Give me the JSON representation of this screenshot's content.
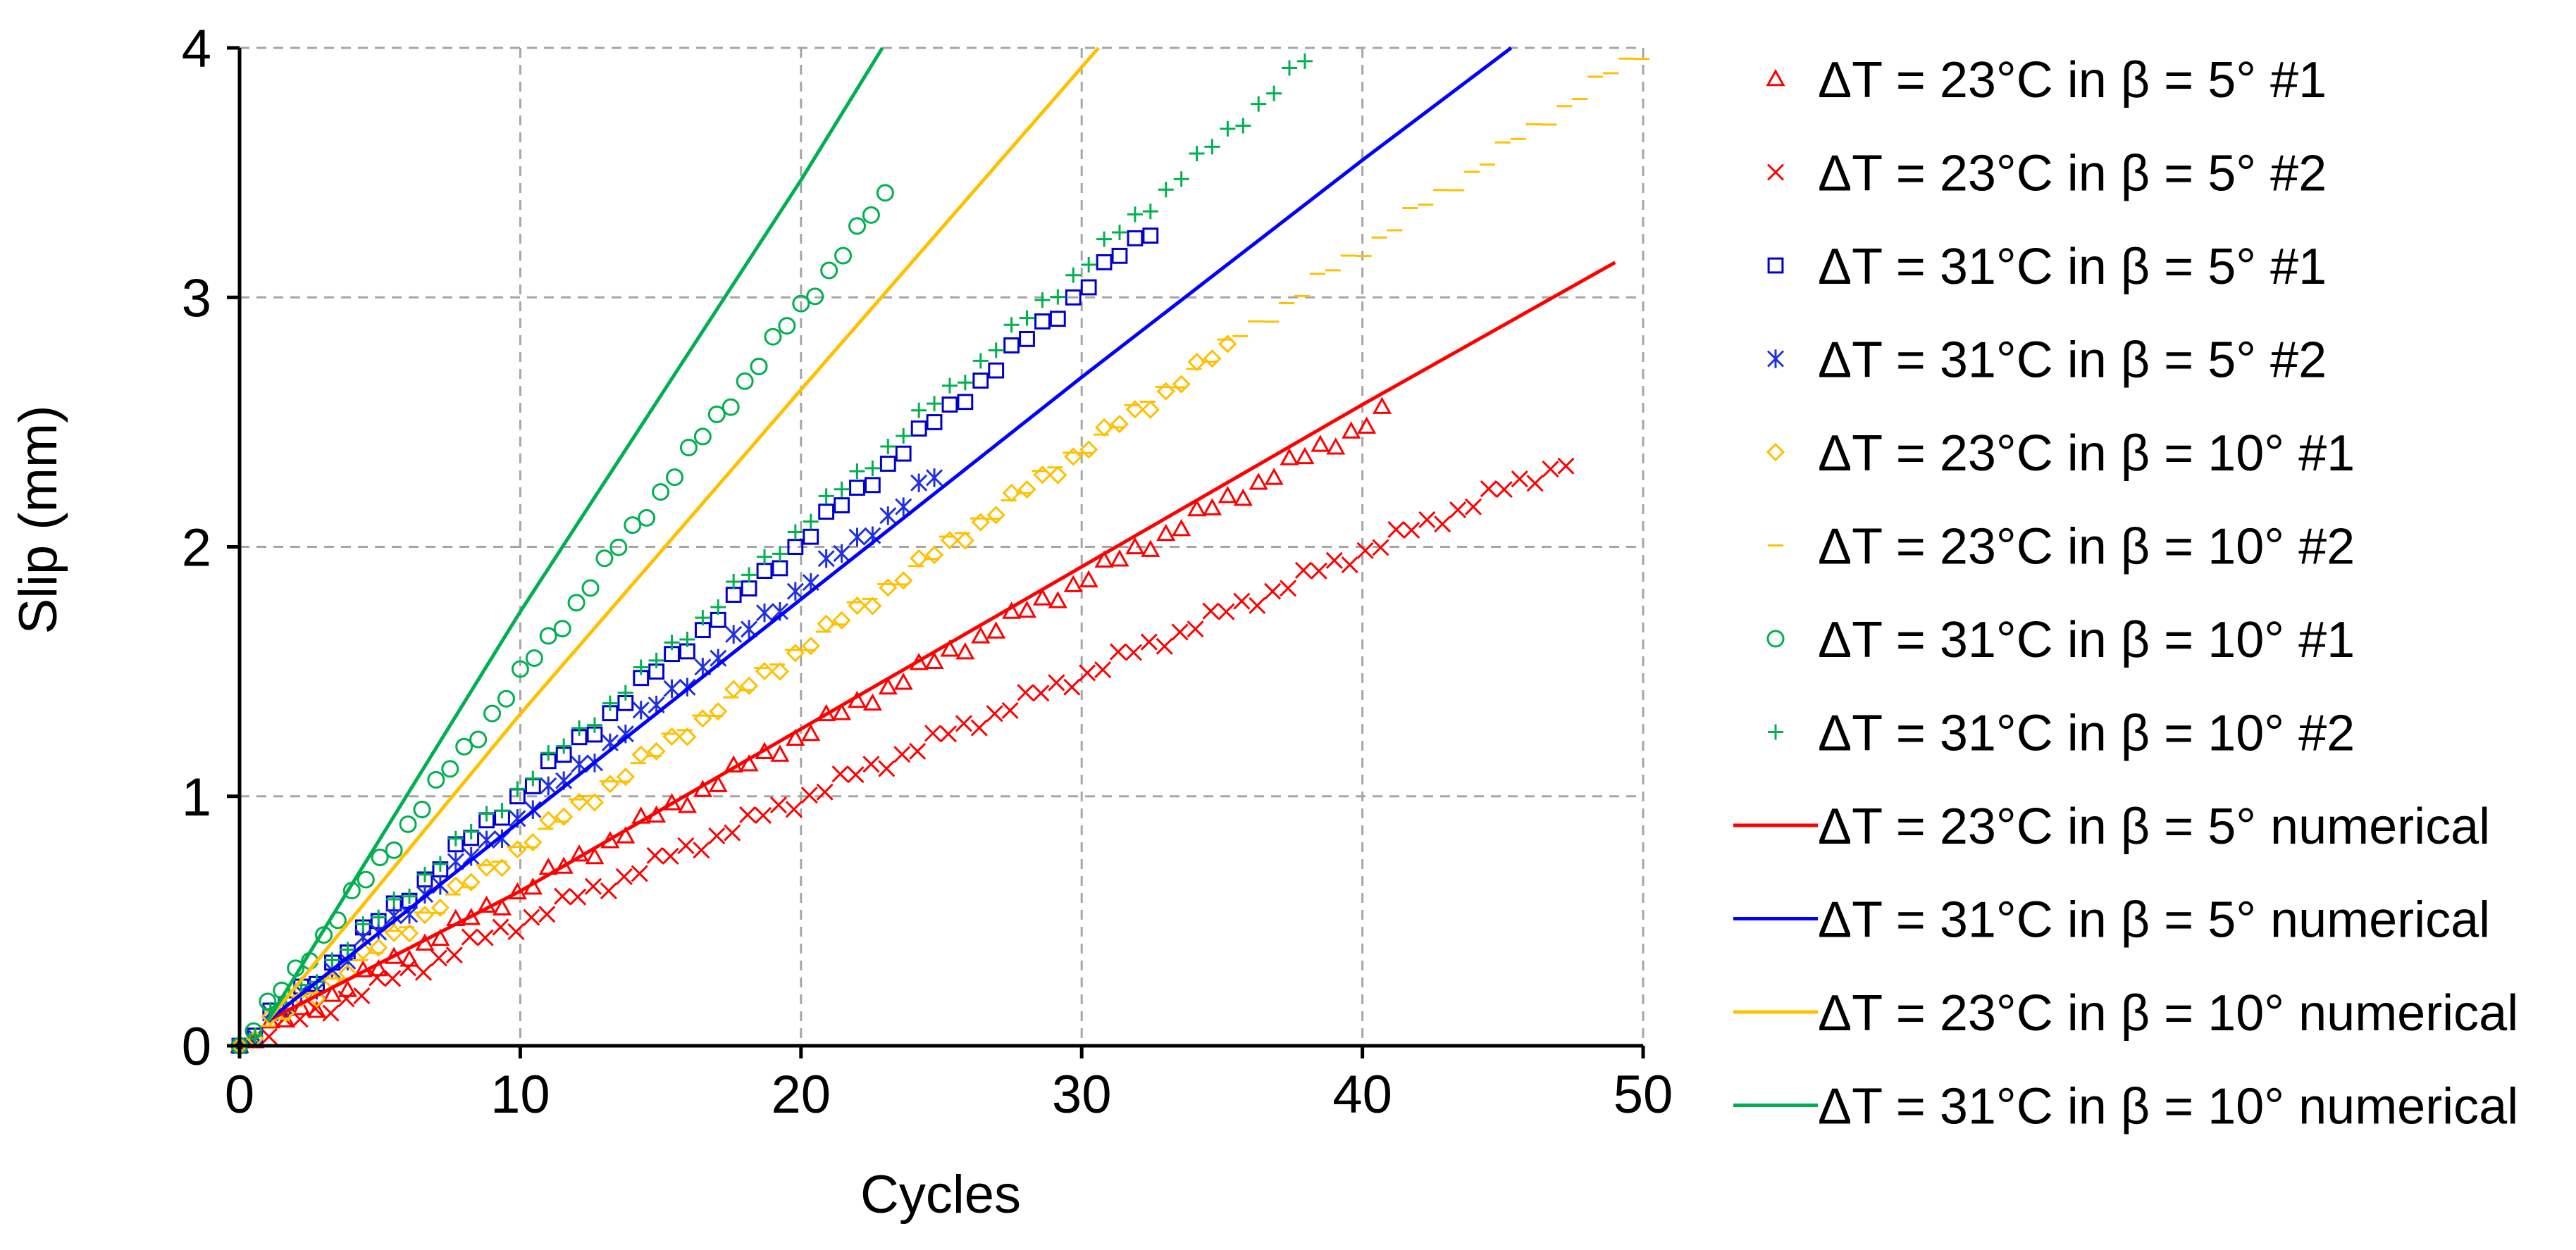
{
  "chart_data": {
    "type": "scatter",
    "xlabel": "Cycles",
    "ylabel": "Slip (mm)",
    "xlim": [
      0,
      50
    ],
    "ylim": [
      0,
      4
    ],
    "xticks": [
      "0",
      "10",
      "20",
      "30",
      "40",
      "50"
    ],
    "yticks": [
      "0",
      "1",
      "2",
      "3",
      "4"
    ],
    "xtick_values": [
      0,
      10,
      20,
      30,
      40,
      50
    ],
    "ytick_values": [
      0,
      1,
      2,
      3,
      4
    ],
    "grid": true,
    "legend_position": "right",
    "series": [
      {
        "name": "ΔT = 23°C in β = 5° #1",
        "kind": "markers",
        "marker": "triangle",
        "color": "#ff0000",
        "x_start": 0,
        "x_end": 41,
        "slope": 0.0622,
        "step": 0.55,
        "end_y": 2.55
      },
      {
        "name": "ΔT = 23°C in β = 5° #2",
        "kind": "markers",
        "marker": "cross",
        "color": "#ff0000",
        "x_start": 0.5,
        "x_end": 47.5,
        "slope": 0.0495,
        "step": 0.55,
        "end_y": 2.35
      },
      {
        "name": "ΔT = 31°C in β = 5° #1",
        "kind": "markers",
        "marker": "square",
        "color": "#0000cc",
        "x_start": 0,
        "x_end": 32.5,
        "slope": 0.101,
        "step": 0.55,
        "end_y": 3.3
      },
      {
        "name": "ΔT = 31°C in β = 5° #2",
        "kind": "markers",
        "marker": "asterisk",
        "color": "#2030dd",
        "x_start": 0,
        "x_end": 25,
        "slope": 0.092,
        "step": 0.55,
        "end_y": 2.3
      },
      {
        "name": "ΔT = 23°C in β = 10° #1",
        "kind": "markers",
        "marker": "diamond",
        "color": "#ffc000",
        "x_start": 0,
        "x_end": 35.5,
        "slope": 0.0795,
        "step": 0.55,
        "end_y": 2.82
      },
      {
        "name": "ΔT = 23°C in β = 10° #2",
        "kind": "markers",
        "marker": "dash",
        "color": "#ffc000",
        "x_start": 1,
        "x_end": 50,
        "slope": 0.0798,
        "step": 0.55,
        "end_y": 4.0
      },
      {
        "name": "ΔT = 31°C in β = 10° #1",
        "kind": "markers",
        "marker": "circle",
        "color": "#00b050",
        "x_start": 0,
        "x_end": 23,
        "slope": 0.148,
        "step": 0.5,
        "end_y": 3.4
      },
      {
        "name": "ΔT = 31°C in β = 10° #2",
        "kind": "markers",
        "marker": "plus",
        "color": "#00b050",
        "x_start": 0,
        "x_end": 38,
        "slope": 0.104,
        "step": 0.55,
        "end_y": 3.95
      },
      {
        "name": "ΔT = 23°C in β = 5° numerical",
        "kind": "line",
        "color": "#ff0000",
        "x": [
          1,
          10,
          20,
          30,
          40,
          49
        ],
        "y": [
          0.1,
          0.62,
          1.27,
          1.92,
          2.57,
          3.14
        ]
      },
      {
        "name": "ΔT = 31°C in β = 5° numerical",
        "kind": "line",
        "color": "#0000ff",
        "x": [
          1,
          10,
          20,
          30,
          40,
          45.3
        ],
        "y": [
          0.1,
          0.9,
          1.79,
          2.68,
          3.55,
          4.0
        ]
      },
      {
        "name": "ΔT = 23°C in β = 10° numerical",
        "kind": "line",
        "color": "#ffc000",
        "x": [
          1,
          10,
          20,
          30.6
        ],
        "y": [
          0.1,
          1.33,
          2.63,
          4.0
        ]
      },
      {
        "name": "ΔT = 31°C in β = 10° numerical",
        "kind": "line",
        "color": "#00b050",
        "x": [
          1,
          10,
          20,
          22.9
        ],
        "y": [
          0.1,
          1.74,
          3.47,
          4.0
        ]
      }
    ]
  }
}
